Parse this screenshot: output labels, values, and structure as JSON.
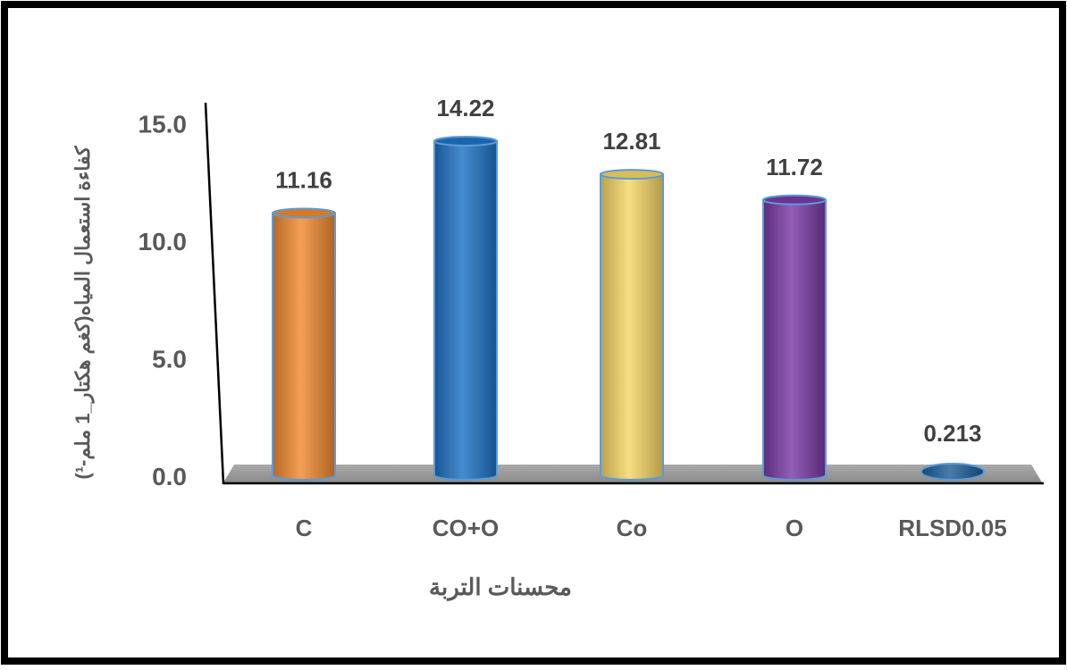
{
  "chart_data": {
    "type": "bar",
    "categories": [
      "C",
      "CO+O",
      "Co",
      "O",
      "RLSD0.05"
    ],
    "values": [
      11.16,
      14.22,
      12.81,
      11.72,
      0.213
    ],
    "value_labels": [
      "11.16",
      "14.22",
      "12.81",
      "11.72",
      "0.213"
    ],
    "colors": [
      "#F28A30",
      "#1F73C6",
      "#F7D765",
      "#7A3BA6",
      "#1F5F99"
    ],
    "xlabel": "محسنات التربة",
    "ylabel": "كفاءة استعمال المياه(كغم هكتار_1 ملم-¹)",
    "yticks": [
      "0.0",
      "5.0",
      "10.0",
      "15.0"
    ],
    "ylim": [
      0,
      15
    ],
    "grid": false,
    "legend": "none"
  }
}
